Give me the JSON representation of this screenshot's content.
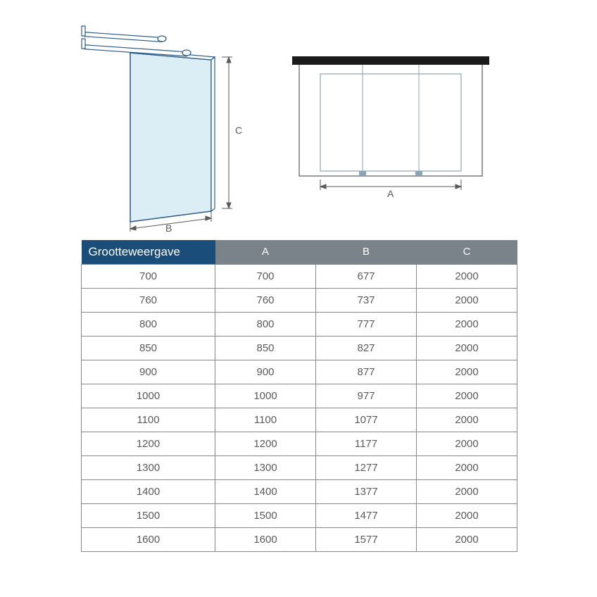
{
  "diagram": {
    "label_c": "C",
    "label_b": "B",
    "label_a": "A",
    "line_color": "#2b5a8a",
    "glass_fill": "#dceef5",
    "bar_color": "#1a1a1a",
    "dim_color": "#666666"
  },
  "table": {
    "header_first_bg": "#1a4d7a",
    "header_rest_bg": "#7a828a",
    "header_text_color": "#ffffff",
    "border_color": "#888888",
    "cell_text_color": "#5a5a5a",
    "fontsize": 15,
    "columns": [
      "Grootteweergave",
      "A",
      "B",
      "C"
    ],
    "rows": [
      [
        "700",
        "700",
        "677",
        "2000"
      ],
      [
        "760",
        "760",
        "737",
        "2000"
      ],
      [
        "800",
        "800",
        "777",
        "2000"
      ],
      [
        "850",
        "850",
        "827",
        "2000"
      ],
      [
        "900",
        "900",
        "877",
        "2000"
      ],
      [
        "1000",
        "1000",
        "977",
        "2000"
      ],
      [
        "1100",
        "1100",
        "1077",
        "2000"
      ],
      [
        "1200",
        "1200",
        "1177",
        "2000"
      ],
      [
        "1300",
        "1300",
        "1277",
        "2000"
      ],
      [
        "1400",
        "1400",
        "1377",
        "2000"
      ],
      [
        "1500",
        "1500",
        "1477",
        "2000"
      ],
      [
        "1600",
        "1600",
        "1577",
        "2000"
      ]
    ]
  }
}
